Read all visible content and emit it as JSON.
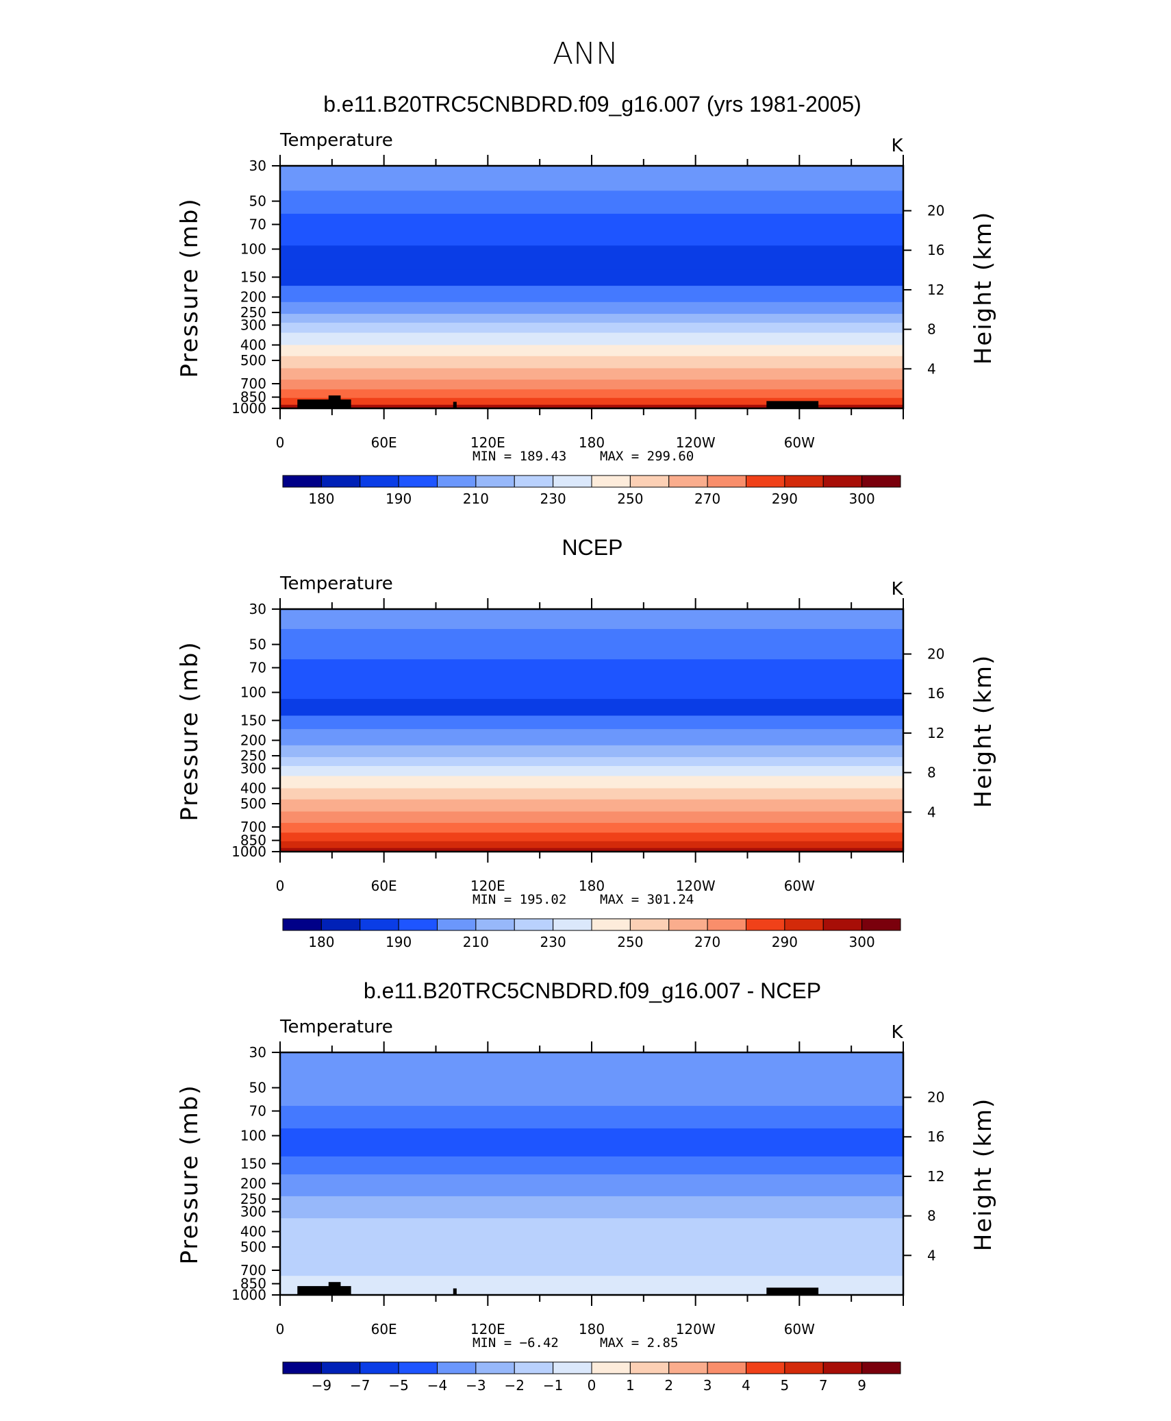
{
  "page_title": "ANN",
  "colors": {
    "levels_18": [
      "#000088",
      "#0021b7",
      "#0a3de6",
      "#1e55ff",
      "#4479ff",
      "#6b97fc",
      "#97b8fa",
      "#b9d1fd",
      "#dbe8fb",
      "#fdecdb",
      "#fcd0b5",
      "#faad8d",
      "#f98e6b",
      "#fc6a40",
      "#f04119",
      "#d32a0a",
      "#a70e07",
      "#7a000c"
    ]
  },
  "shared": {
    "pressure_ticks": [
      "30",
      "50",
      "70",
      "100",
      "150",
      "200",
      "250",
      "300",
      "400",
      "500",
      "700",
      "850",
      "1000"
    ],
    "height_ticks": [
      "20",
      "16",
      "12",
      "8",
      "4"
    ],
    "lon_ticks": [
      "0",
      "60E",
      "120E",
      "180",
      "120W",
      "60W"
    ],
    "y_axis_label": "Pressure  (mb)",
    "y2_axis_label": "Height  (km)",
    "variable_label": "Temperature",
    "units_label": "K",
    "min_label": "MIN =",
    "max_label": "MAX ="
  },
  "chart_data": [
    {
      "type": "heatmap",
      "title": "b.e11.B20TRC5CNBDRD.f09_g16.007 (yrs 1981-2005)",
      "xlabel": "",
      "ylabel": "Pressure  (mb)",
      "x_range": [
        0,
        360
      ],
      "y_range_mb": [
        1000,
        30
      ],
      "min": "189.43",
      "max": "299.60",
      "colorbar_labels": [
        "180",
        "190",
        "210",
        "230",
        "250",
        "270",
        "290",
        "300"
      ],
      "band_levels_mb": [
        30,
        43,
        60,
        95,
        135,
        170,
        215,
        255,
        290,
        335,
        400,
        470,
        560,
        660,
        760,
        860,
        950,
        1000
      ],
      "band_colors": [
        5,
        4,
        3,
        2,
        2,
        4,
        5,
        6,
        7,
        8,
        9,
        10,
        11,
        12,
        13,
        14,
        15,
        16
      ]
    },
    {
      "type": "heatmap",
      "title": "NCEP",
      "xlabel": "",
      "ylabel": "Pressure  (mb)",
      "x_range": [
        0,
        360
      ],
      "y_range_mb": [
        1000,
        30
      ],
      "min": "195.02",
      "max": "301.24",
      "colorbar_labels": [
        "180",
        "190",
        "210",
        "230",
        "250",
        "270",
        "290",
        "300"
      ],
      "band_levels_mb": [
        30,
        40,
        62,
        110,
        140,
        170,
        215,
        255,
        290,
        335,
        400,
        470,
        560,
        660,
        760,
        860,
        950,
        1000
      ],
      "band_colors": [
        5,
        4,
        3,
        2,
        4,
        5,
        6,
        7,
        8,
        9,
        10,
        11,
        12,
        13,
        14,
        15,
        16,
        16
      ]
    },
    {
      "type": "heatmap",
      "title": "b.e11.B20TRC5CNBDRD.f09_g16.007 - NCEP",
      "xlabel": "",
      "ylabel": "Pressure  (mb)",
      "x_range": [
        0,
        360
      ],
      "y_range_mb": [
        1000,
        30
      ],
      "min": "−6.42",
      "max": "2.85",
      "colorbar_labels": [
        "−9",
        "−7",
        "−5",
        "−4",
        "−3",
        "−2",
        "−1",
        "0",
        "1",
        "2",
        "3",
        "4",
        "5",
        "7",
        "9"
      ],
      "band_levels_mb": [
        30,
        65,
        90,
        135,
        175,
        240,
        330,
        560,
        760,
        1000
      ],
      "band_colors": [
        5,
        4,
        3,
        4,
        5,
        6,
        7,
        7,
        8,
        8
      ]
    }
  ]
}
